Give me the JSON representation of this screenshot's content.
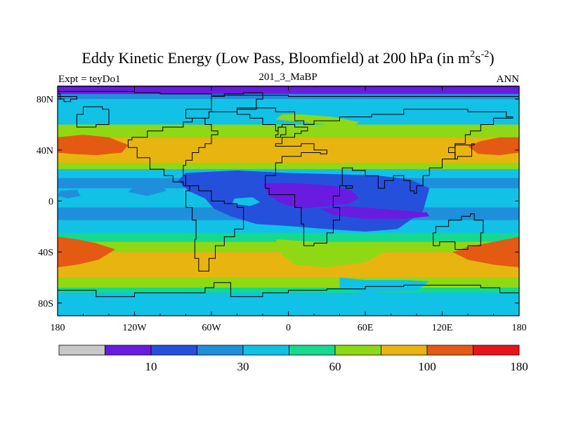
{
  "chart_data": {
    "type": "heatmap",
    "title_main": "Eddy Kinetic Energy (Low Pass, Bloomfield) at 200 hPa (in m",
    "title_sup1": "2",
    "title_mid": "s",
    "title_sup2": "-2",
    "title_close": ")",
    "subtitle_left": "Expt = teyDo1",
    "subtitle_center": "201_3_MaBP",
    "subtitle_right": "ANN",
    "x_ticks": [
      {
        "value": -180,
        "label": "180"
      },
      {
        "value": -120,
        "label": "120W"
      },
      {
        "value": -60,
        "label": "60W"
      },
      {
        "value": 0,
        "label": "0"
      },
      {
        "value": 60,
        "label": "60E"
      },
      {
        "value": 120,
        "label": "120E"
      },
      {
        "value": 180,
        "label": "180"
      }
    ],
    "y_ticks": [
      {
        "value": 80,
        "label": "80N"
      },
      {
        "value": 40,
        "label": "40N"
      },
      {
        "value": 0,
        "label": "0"
      },
      {
        "value": -40,
        "label": "40S"
      },
      {
        "value": -80,
        "label": "80S"
      }
    ],
    "xlim": [
      -180,
      180
    ],
    "ylim": [
      -90,
      90
    ],
    "colorbar": {
      "colors": [
        "#c8c8c8",
        "#6a1be0",
        "#2450dc",
        "#1f8fdc",
        "#12c1e6",
        "#14d98f",
        "#8fd814",
        "#e8b40f",
        "#e45a12",
        "#e8141c"
      ],
      "labels": [
        {
          "boundary": 2,
          "text": "10"
        },
        {
          "boundary": 4,
          "text": "30"
        },
        {
          "boundary": 6,
          "text": "60"
        },
        {
          "boundary": 8,
          "text": "100"
        },
        {
          "boundary": 10,
          "text": "180"
        }
      ]
    },
    "background_level": 4,
    "lat_bands": [
      {
        "lat_min": 84,
        "lat_max": 90,
        "level": 1
      },
      {
        "lat_min": 80,
        "lat_max": 84,
        "level": 3
      },
      {
        "lat_min": 60,
        "lat_max": 80,
        "level": 4
      },
      {
        "lat_min": 50,
        "lat_max": 60,
        "level": 6
      },
      {
        "lat_min": 30,
        "lat_max": 50,
        "level": 7
      },
      {
        "lat_min": 25,
        "lat_max": 30,
        "level": 6
      },
      {
        "lat_min": 18,
        "lat_max": 25,
        "level": 4
      },
      {
        "lat_min": 10,
        "lat_max": 18,
        "level": 3
      },
      {
        "lat_min": -5,
        "lat_max": 10,
        "level": 4
      },
      {
        "lat_min": -15,
        "lat_max": -5,
        "level": 3
      },
      {
        "lat_min": -25,
        "lat_max": -15,
        "level": 4
      },
      {
        "lat_min": -32,
        "lat_max": -25,
        "level": 5
      },
      {
        "lat_min": -40,
        "lat_max": -32,
        "level": 6
      },
      {
        "lat_min": -60,
        "lat_max": -40,
        "level": 7
      },
      {
        "lat_min": -68,
        "lat_max": -60,
        "level": 6
      },
      {
        "lat_min": -72,
        "lat_max": -68,
        "level": 5
      },
      {
        "lat_min": -90,
        "lat_max": -72,
        "level": 4
      }
    ],
    "blobs": [
      {
        "level": 8,
        "points": [
          [
            -180,
            50
          ],
          [
            -160,
            52
          ],
          [
            -140,
            50
          ],
          [
            -125,
            44
          ],
          [
            -130,
            38
          ],
          [
            -150,
            36
          ],
          [
            -170,
            37
          ],
          [
            -180,
            38
          ]
        ]
      },
      {
        "level": 8,
        "points": [
          [
            180,
            50
          ],
          [
            165,
            50
          ],
          [
            150,
            47
          ],
          [
            140,
            43
          ],
          [
            148,
            37
          ],
          [
            165,
            36
          ],
          [
            180,
            38
          ]
        ]
      },
      {
        "level": 8,
        "points": [
          [
            -180,
            -28
          ],
          [
            -165,
            -30
          ],
          [
            -150,
            -33
          ],
          [
            -135,
            -38
          ],
          [
            -148,
            -46
          ],
          [
            -165,
            -50
          ],
          [
            -180,
            -52
          ]
        ]
      },
      {
        "level": 8,
        "points": [
          [
            180,
            -28
          ],
          [
            160,
            -32
          ],
          [
            140,
            -36
          ],
          [
            128,
            -40
          ],
          [
            140,
            -46
          ],
          [
            160,
            -50
          ],
          [
            180,
            -52
          ]
        ]
      },
      {
        "level": 6,
        "points": [
          [
            -10,
            64
          ],
          [
            10,
            62
          ],
          [
            30,
            60
          ],
          [
            50,
            58
          ],
          [
            55,
            62
          ],
          [
            35,
            66
          ],
          [
            10,
            68
          ],
          [
            -5,
            68
          ]
        ]
      },
      {
        "level": 6,
        "points": [
          [
            -10,
            -30
          ],
          [
            20,
            -32
          ],
          [
            55,
            -36
          ],
          [
            75,
            -40
          ],
          [
            60,
            -48
          ],
          [
            30,
            -52
          ],
          [
            5,
            -50
          ],
          [
            -5,
            -42
          ]
        ]
      },
      {
        "level": 4,
        "points": [
          [
            40,
            -60
          ],
          [
            60,
            -62
          ],
          [
            90,
            -62
          ],
          [
            110,
            -63
          ],
          [
            100,
            -70
          ],
          [
            60,
            -72
          ],
          [
            40,
            -68
          ]
        ]
      },
      {
        "level": 2,
        "points": [
          [
            -80,
            22
          ],
          [
            -40,
            24
          ],
          [
            0,
            22
          ],
          [
            40,
            21
          ],
          [
            70,
            20
          ],
          [
            95,
            17
          ],
          [
            110,
            10
          ],
          [
            105,
            -8
          ],
          [
            85,
            -22
          ],
          [
            60,
            -24
          ],
          [
            30,
            -22
          ],
          [
            5,
            -20
          ],
          [
            -25,
            -18
          ],
          [
            -45,
            -12
          ],
          [
            -58,
            -6
          ],
          [
            -65,
            2
          ],
          [
            -78,
            8
          ],
          [
            -86,
            16
          ]
        ]
      },
      {
        "level": 3,
        "points": [
          [
            -120,
            12
          ],
          [
            -100,
            14
          ],
          [
            -95,
            8
          ],
          [
            -110,
            4
          ],
          [
            -125,
            7
          ]
        ]
      },
      {
        "level": 3,
        "points": [
          [
            -178,
            8
          ],
          [
            -165,
            9
          ],
          [
            -162,
            4
          ],
          [
            -172,
            2
          ],
          [
            -180,
            4
          ]
        ]
      },
      {
        "level": 1,
        "points": [
          [
            -20,
            14
          ],
          [
            5,
            14
          ],
          [
            35,
            12
          ],
          [
            50,
            8
          ],
          [
            55,
            2
          ],
          [
            47,
            -2
          ],
          [
            30,
            -4
          ],
          [
            10,
            -6
          ],
          [
            -5,
            -2
          ],
          [
            -15,
            4
          ]
        ]
      },
      {
        "level": 1,
        "points": [
          [
            25,
            -6
          ],
          [
            45,
            -4
          ],
          [
            70,
            -6
          ],
          [
            95,
            -8
          ],
          [
            108,
            -9
          ],
          [
            110,
            -12
          ],
          [
            90,
            -14
          ],
          [
            60,
            -14
          ],
          [
            35,
            -11
          ]
        ]
      },
      {
        "level": 4,
        "points": [
          [
            -42,
            2
          ],
          [
            -28,
            3
          ],
          [
            -22,
            -1
          ],
          0,
          [
            -30,
            -4
          ],
          [
            -44,
            -2
          ]
        ]
      }
    ],
    "coastlines": [
      [
        [
          -180,
          86
        ],
        [
          -150,
          86
        ],
        [
          -120,
          85
        ],
        [
          -100,
          84
        ],
        [
          -80,
          84
        ],
        [
          -60,
          83
        ],
        [
          -30,
          83
        ],
        [
          0,
          82
        ],
        [
          30,
          82
        ],
        [
          60,
          82
        ],
        [
          90,
          82
        ],
        [
          120,
          82
        ],
        [
          150,
          82
        ],
        [
          180,
          82
        ]
      ],
      [
        [
          -180,
          84
        ],
        [
          -178,
          80
        ],
        [
          -175,
          78
        ],
        [
          -170,
          80
        ],
        [
          -165,
          82
        ],
        [
          -180,
          84
        ]
      ],
      [
        [
          -40,
          73
        ],
        [
          -20,
          73
        ],
        [
          -10,
          70
        ],
        [
          5,
          63
        ],
        [
          12,
          60
        ],
        [
          20,
          63
        ],
        [
          40,
          66
        ],
        [
          65,
          68
        ],
        [
          90,
          72
        ],
        [
          120,
          72
        ],
        [
          140,
          70
        ],
        [
          160,
          70
        ],
        [
          170,
          66
        ],
        [
          175,
          65
        ],
        [
          160,
          60
        ],
        [
          150,
          55
        ],
        [
          142,
          52
        ],
        [
          138,
          45
        ],
        [
          130,
          42
        ],
        [
          125,
          38
        ],
        [
          130,
          33
        ],
        [
          120,
          26
        ],
        [
          110,
          20
        ],
        [
          105,
          12
        ],
        [
          100,
          6
        ],
        [
          98,
          8
        ],
        [
          95,
          16
        ],
        [
          90,
          20
        ],
        [
          82,
          16
        ],
        [
          75,
          10
        ],
        [
          70,
          20
        ],
        [
          60,
          24
        ],
        [
          50,
          26
        ],
        [
          42,
          12
        ],
        [
          45,
          10
        ],
        [
          50,
          12
        ],
        [
          40,
          4
        ],
        [
          35,
          -5
        ],
        [
          40,
          -15
        ],
        [
          35,
          -25
        ],
        [
          30,
          -33
        ],
        [
          20,
          -35
        ],
        [
          12,
          -18
        ],
        [
          10,
          -5
        ],
        [
          5,
          5
        ],
        [
          -5,
          5
        ],
        [
          -15,
          10
        ],
        [
          -18,
          20
        ],
        [
          -10,
          30
        ],
        [
          -5,
          35
        ],
        [
          10,
          38
        ],
        [
          25,
          37
        ],
        [
          30,
          40
        ],
        [
          20,
          45
        ],
        [
          10,
          43
        ],
        [
          -5,
          43
        ],
        [
          -10,
          45
        ],
        [
          -5,
          50
        ],
        [
          5,
          53
        ],
        [
          10,
          55
        ],
        [
          15,
          58
        ],
        [
          5,
          60
        ],
        [
          -5,
          58
        ],
        [
          -8,
          55
        ],
        [
          -10,
          60
        ],
        [
          -20,
          65
        ],
        [
          -30,
          68
        ],
        [
          -40,
          73
        ]
      ],
      [
        [
          -80,
          72
        ],
        [
          -60,
          70
        ],
        [
          -62,
          65
        ],
        [
          -75,
          62
        ],
        [
          -82,
          58
        ],
        [
          -92,
          58
        ],
        [
          -98,
          55
        ],
        [
          -110,
          50
        ],
        [
          -122,
          48
        ],
        [
          -125,
          42
        ],
        [
          -118,
          34
        ],
        [
          -108,
          25
        ],
        [
          -97,
          20
        ],
        [
          -90,
          15
        ],
        [
          -82,
          12
        ],
        [
          -77,
          8
        ],
        [
          -80,
          2
        ],
        [
          -80,
          -5
        ],
        [
          -75,
          -15
        ],
        [
          -72,
          -30
        ],
        [
          -73,
          -45
        ],
        [
          -70,
          -55
        ],
        [
          -65,
          -55
        ],
        [
          -62,
          -45
        ],
        [
          -57,
          -35
        ],
        [
          -50,
          -28
        ],
        [
          -42,
          -22
        ],
        [
          -35,
          -10
        ],
        [
          -35,
          -5
        ],
        [
          -40,
          -2
        ],
        [
          -50,
          0
        ],
        [
          -60,
          8
        ],
        [
          -70,
          12
        ],
        [
          -80,
          20
        ],
        [
          -82,
          28
        ],
        [
          -80,
          32
        ],
        [
          -75,
          38
        ],
        [
          -70,
          42
        ],
        [
          -65,
          45
        ],
        [
          -60,
          52
        ],
        [
          -55,
          55
        ],
        [
          -60,
          60
        ],
        [
          -65,
          65
        ],
        [
          -80,
          72
        ]
      ],
      [
        [
          -60,
          70
        ],
        [
          -40,
          72
        ],
        [
          -25,
          80
        ],
        [
          -20,
          85
        ],
        [
          -35,
          84
        ],
        [
          -50,
          82
        ],
        [
          -60,
          78
        ],
        [
          -60,
          70
        ]
      ],
      [
        [
          -160,
          74
        ],
        [
          -145,
          72
        ],
        [
          -140,
          60
        ],
        [
          -150,
          58
        ],
        [
          -165,
          60
        ],
        [
          -165,
          68
        ],
        [
          -160,
          74
        ]
      ],
      [
        [
          115,
          -20
        ],
        [
          125,
          -15
        ],
        [
          135,
          -12
        ],
        [
          142,
          -10
        ],
        [
          145,
          -15
        ],
        [
          152,
          -25
        ],
        [
          150,
          -35
        ],
        [
          140,
          -38
        ],
        [
          130,
          -32
        ],
        [
          118,
          -35
        ],
        [
          113,
          -25
        ],
        [
          115,
          -20
        ]
      ],
      [
        [
          -180,
          -70
        ],
        [
          -150,
          -75
        ],
        [
          -120,
          -72
        ],
        [
          -90,
          -72
        ],
        [
          -65,
          -68
        ],
        [
          -58,
          -64
        ],
        [
          -45,
          -75
        ],
        [
          -20,
          -72
        ],
        [
          0,
          -70
        ],
        [
          30,
          -69
        ],
        [
          60,
          -67
        ],
        [
          90,
          -66
        ],
        [
          120,
          -66
        ],
        [
          150,
          -68
        ],
        [
          165,
          -72
        ],
        [
          180,
          -75
        ]
      ],
      [
        [
          -8,
          58
        ],
        [
          -3,
          58
        ],
        [
          -2,
          52
        ],
        [
          -6,
          50
        ],
        [
          -10,
          52
        ],
        [
          -8,
          58
        ]
      ],
      [
        [
          130,
          44
        ],
        [
          145,
          45
        ],
        [
          143,
          35
        ],
        [
          132,
          33
        ],
        [
          130,
          38
        ],
        [
          130,
          44
        ]
      ]
    ]
  }
}
